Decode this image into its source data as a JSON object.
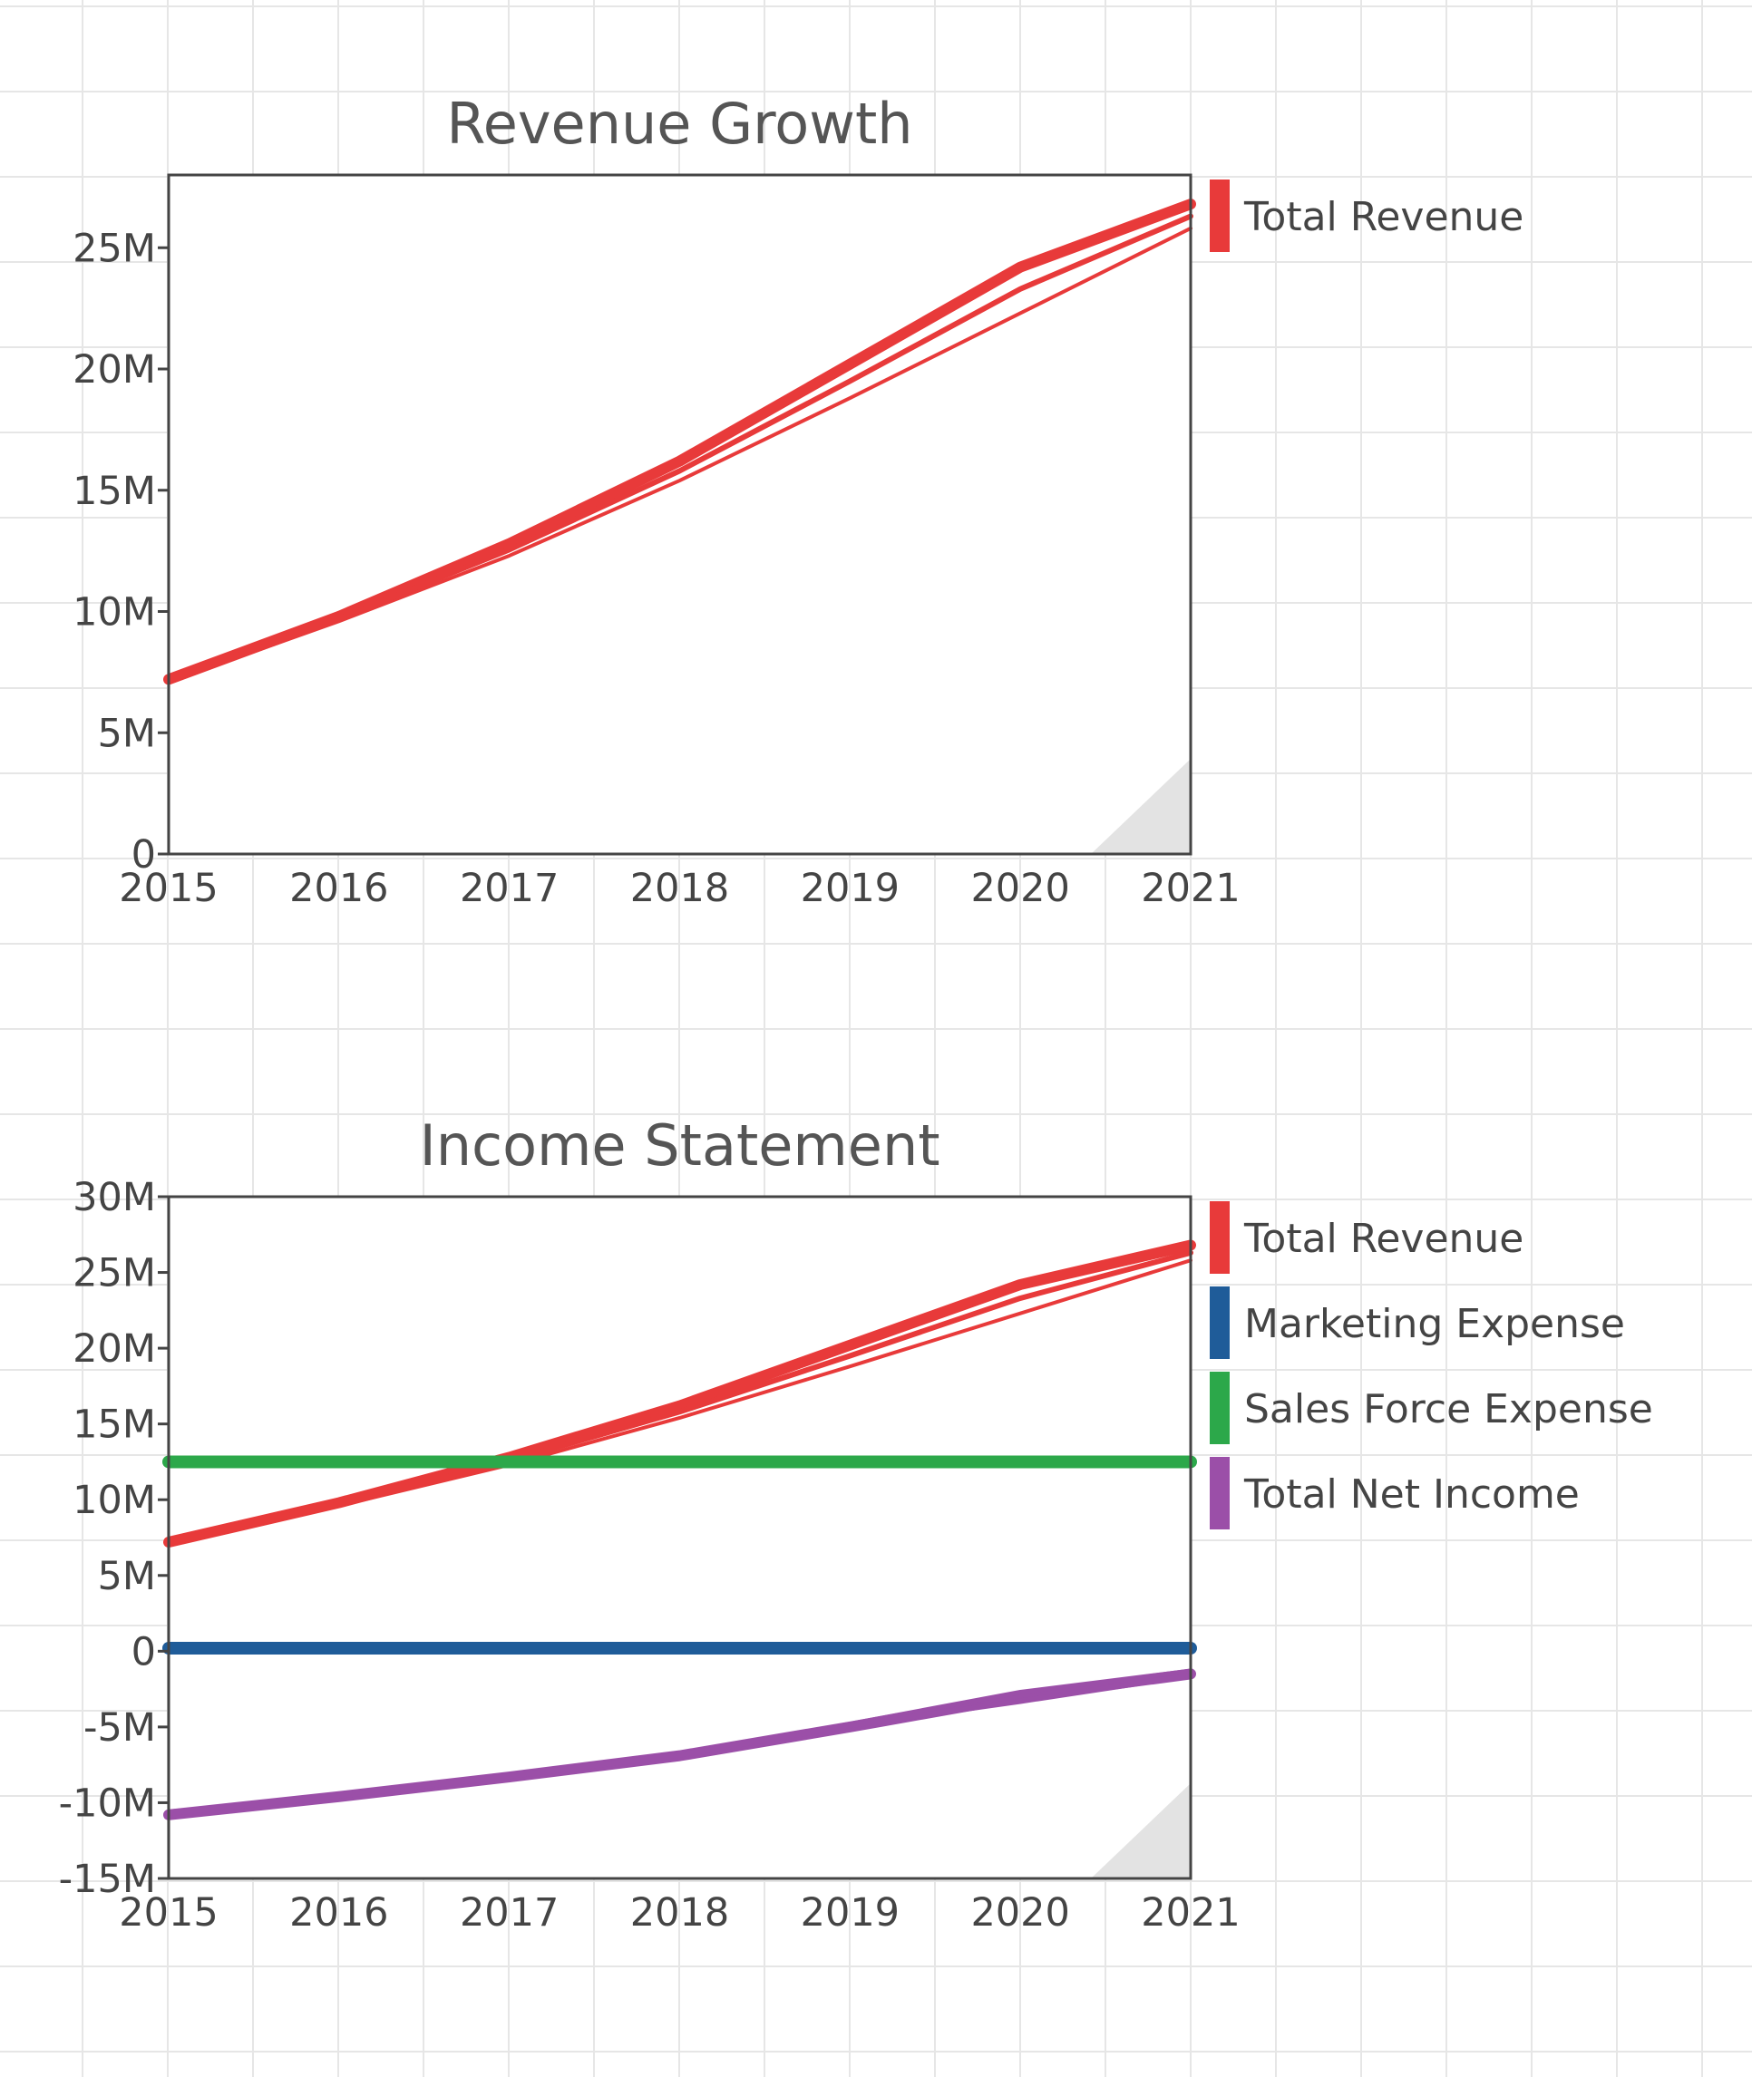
{
  "chart_data": [
    {
      "type": "line",
      "title": "Revenue Growth",
      "xlabel": "",
      "ylabel": "",
      "x_ticks": [
        "2015",
        "2016",
        "2017",
        "2018",
        "2019",
        "2020",
        "2021"
      ],
      "y_ticks": [
        "0",
        "5M",
        "10M",
        "15M",
        "20M",
        "25M"
      ],
      "xlim": [
        2015,
        2021
      ],
      "ylim": [
        0,
        28000000
      ],
      "grid": false,
      "legend_position": "right",
      "x": [
        2015,
        2016,
        2017,
        2018,
        2019,
        2020,
        2021
      ],
      "series": [
        {
          "name": "Total Revenue",
          "color": "#e83a3a",
          "values": [
            7200000,
            9800000,
            12800000,
            16200000,
            20200000,
            24200000,
            26800000
          ]
        },
        {
          "color": "#e83a3a",
          "values": [
            7100000,
            9600000,
            12300000,
            15400000,
            18800000,
            22300000,
            25800000
          ]
        },
        {
          "color": "#e83a3a",
          "values": [
            7150000,
            9700000,
            12550000,
            15800000,
            19500000,
            23300000,
            26300000
          ]
        }
      ]
    },
    {
      "type": "line",
      "title": "Income Statement",
      "xlabel": "",
      "ylabel": "",
      "x_ticks": [
        "2015",
        "2016",
        "2017",
        "2018",
        "2019",
        "2020",
        "2021"
      ],
      "y_ticks": [
        "30M",
        "25M",
        "20M",
        "15M",
        "10M",
        "5M",
        "0",
        "-5M",
        "-10M",
        "-15M"
      ],
      "xlim": [
        2015,
        2021
      ],
      "ylim": [
        -15000000,
        30000000
      ],
      "grid": false,
      "legend_position": "right",
      "x": [
        2015,
        2016,
        2017,
        2018,
        2019,
        2020,
        2021
      ],
      "series": [
        {
          "name": "Total Revenue",
          "color": "#e83a3a",
          "values": [
            7200000,
            9800000,
            12800000,
            16200000,
            20200000,
            24200000,
            26800000
          ]
        },
        {
          "color": "#e83a3a",
          "values": [
            7100000,
            9600000,
            12300000,
            15400000,
            18800000,
            22300000,
            25800000
          ]
        },
        {
          "color": "#e83a3a",
          "values": [
            7150000,
            9700000,
            12550000,
            15800000,
            19500000,
            23300000,
            26300000
          ]
        },
        {
          "name": "Marketing Expense",
          "color": "#1f5c99",
          "values": [
            200000,
            200000,
            200000,
            200000,
            200000,
            200000,
            200000
          ]
        },
        {
          "name": "Sales Force Expense",
          "color": "#2ca84a",
          "values": [
            12500000,
            12500000,
            12500000,
            12500000,
            12500000,
            12500000,
            12500000
          ]
        },
        {
          "name": "Total Net Income",
          "color": "#9b4fa8",
          "values": [
            -10800000,
            -9600000,
            -8300000,
            -6900000,
            -5000000,
            -3000000,
            -1500000
          ]
        },
        {
          "color": "#9b4fa8",
          "values": [
            -10600000,
            -9500000,
            -8200000,
            -6800000,
            -4800000,
            -2700000,
            -1300000
          ]
        },
        {
          "color": "#9b4fa8",
          "values": [
            -10700000,
            -9550000,
            -8250000,
            -6850000,
            -4900000,
            -3300000,
            -1600000
          ]
        }
      ]
    }
  ]
}
